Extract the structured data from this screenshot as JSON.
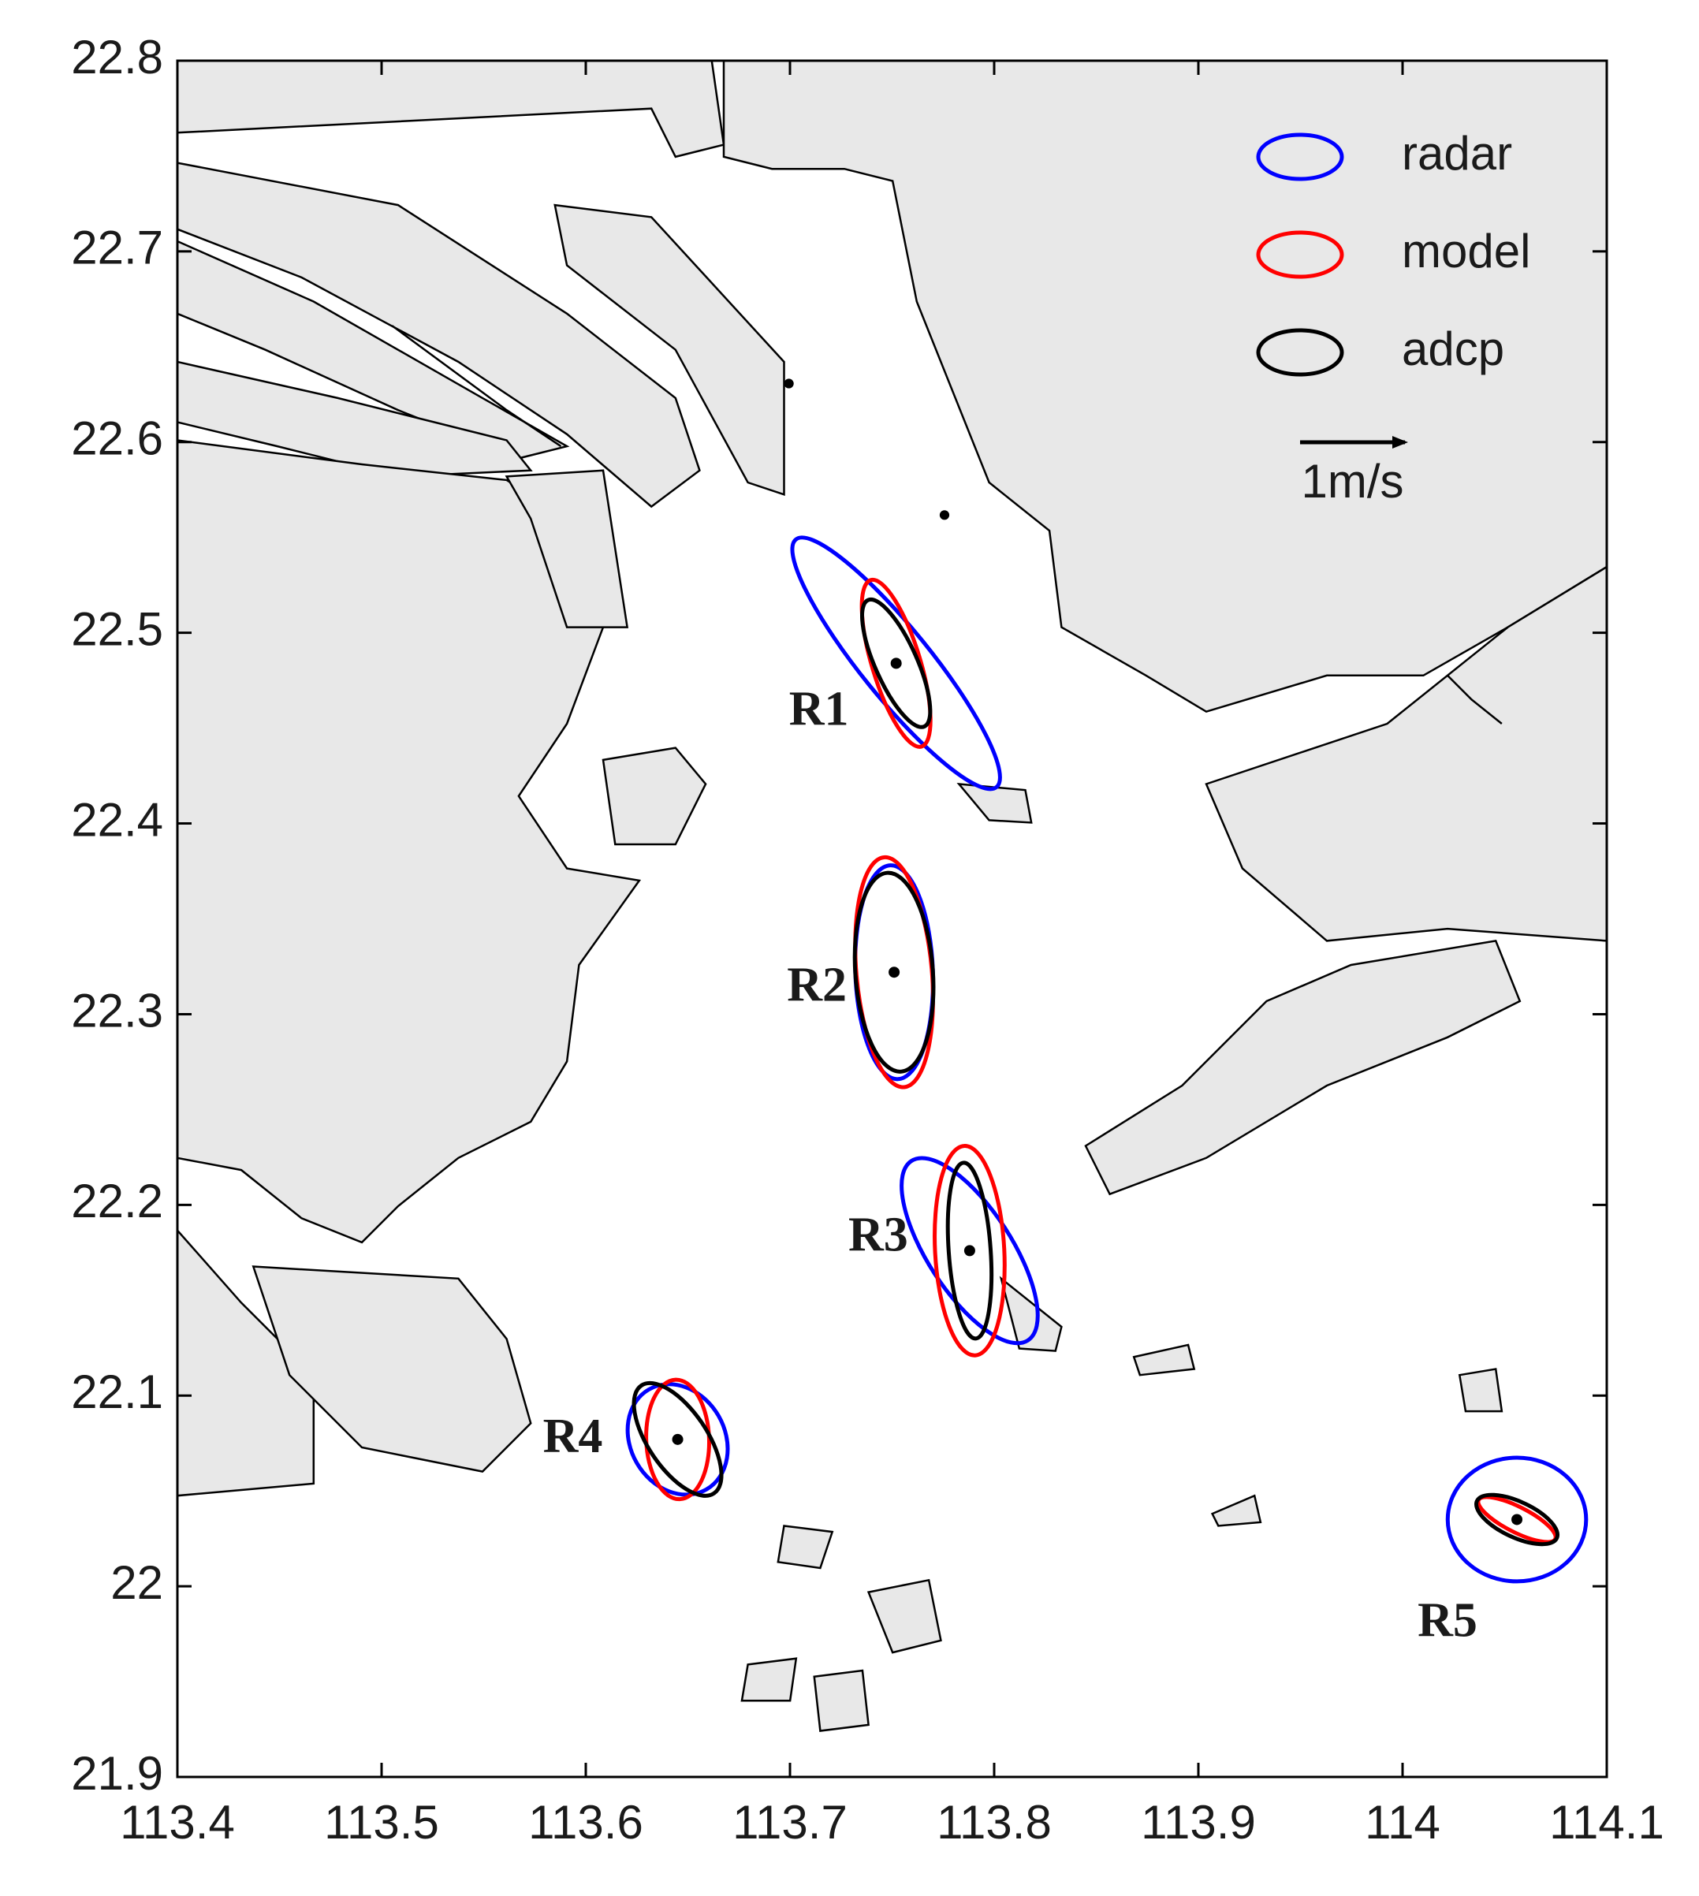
{
  "chart_data": {
    "type": "ellipse",
    "categories": [
      "R1",
      "R2",
      "R3",
      "R4",
      "R5"
    ],
    "lon": [
      113.752,
      113.751,
      113.788,
      113.645,
      114.056
    ],
    "lat": [
      22.484,
      22.322,
      22.176,
      22.077,
      22.035
    ],
    "series": [
      {
        "name": "radar",
        "color": "#0000ff",
        "major": [
          1.52,
          1.02,
          1.02,
          0.55,
          0.66
        ],
        "minor": [
          0.33,
          0.37,
          0.4,
          0.45,
          0.59
        ],
        "angle": [
          129,
          92,
          123,
          120,
          0
        ]
      },
      {
        "name": "model",
        "color": "#ff0000",
        "major": [
          0.83,
          1.1,
          1.0,
          0.57,
          0.41
        ],
        "minor": [
          0.23,
          0.36,
          0.33,
          0.3,
          0.12
        ],
        "angle": [
          107,
          95,
          93,
          92,
          -27
        ]
      },
      {
        "name": "adcp",
        "color": "#000000",
        "major": [
          0.66,
          0.95,
          0.84,
          0.62,
          0.42
        ],
        "minor": [
          0.2,
          0.37,
          0.2,
          0.28,
          0.17
        ],
        "angle": [
          114,
          94,
          94,
          124,
          -25
        ]
      }
    ],
    "speed_scale": {
      "value": 1,
      "label": "1m/s"
    },
    "xlim": [
      113.4,
      114.1
    ],
    "xticks": [
      113.4,
      113.5,
      113.6,
      113.7,
      113.8,
      113.9,
      114,
      114.1
    ],
    "ylim": [
      21.9,
      22.8
    ],
    "yticks": [
      21.9,
      22,
      22.1,
      22.2,
      22.3,
      22.4,
      22.5,
      22.6,
      22.7,
      22.8
    ]
  }
}
